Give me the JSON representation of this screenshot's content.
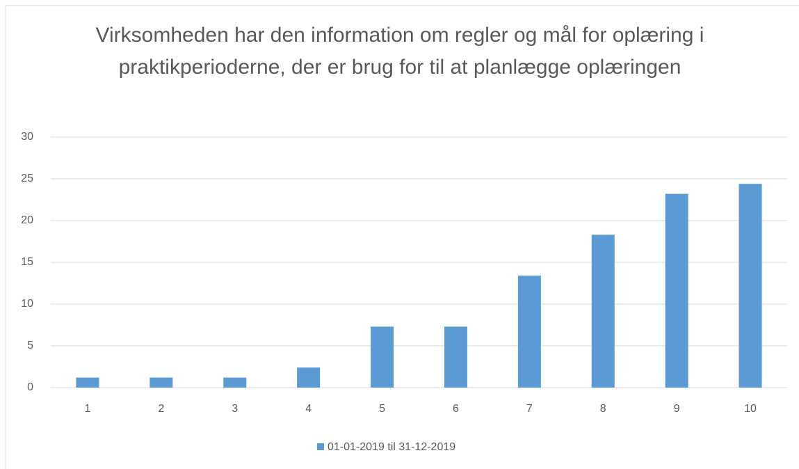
{
  "chart_data": {
    "type": "bar",
    "title": "Virksomheden har den information om regler og mål for oplæring i praktikperioderne, der er brug for til at planlægge oplæringen",
    "categories": [
      "1",
      "2",
      "3",
      "4",
      "5",
      "6",
      "7",
      "8",
      "9",
      "10"
    ],
    "series": [
      {
        "name": "01-01-2019 til 31-12-2019",
        "color": "#5b9bd5",
        "values": [
          1.2,
          1.2,
          1.2,
          2.4,
          7.3,
          7.3,
          13.4,
          18.3,
          23.2,
          24.4
        ]
      }
    ],
    "ylim": [
      0,
      30
    ],
    "yticks": [
      0,
      5,
      10,
      15,
      20,
      25,
      30
    ],
    "grid": true,
    "legend": "bottom"
  }
}
